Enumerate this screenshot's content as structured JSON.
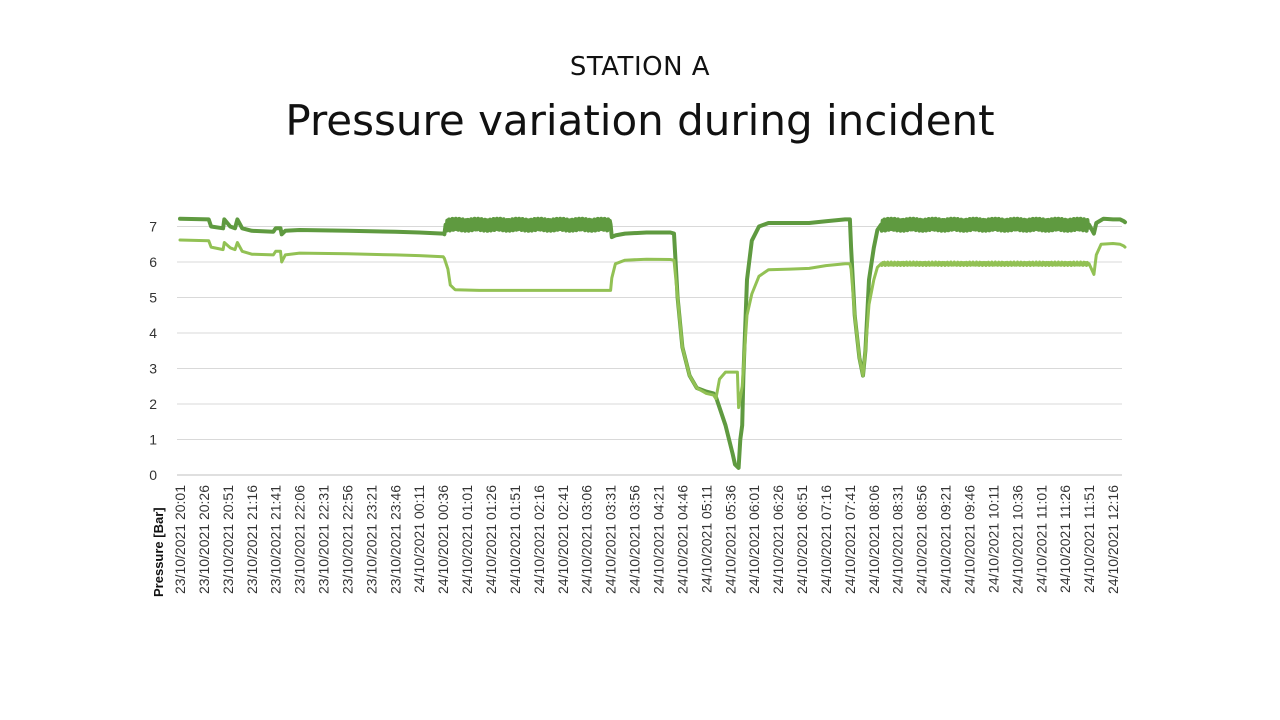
{
  "subtitle": "STATION A",
  "title": "Pressure variation during incident",
  "chart_data": {
    "type": "line",
    "ylabel": "Pressure [Bar]",
    "xlabel": "",
    "ylim": [
      0,
      7
    ],
    "yticks": [
      0,
      1,
      2,
      3,
      4,
      5,
      6,
      7
    ],
    "grid": true,
    "x_ticks": [
      "23/10/2021 20:01",
      "23/10/2021 20:26",
      "23/10/2021 20:51",
      "23/10/2021 21:16",
      "23/10/2021 21:41",
      "23/10/2021 22:06",
      "23/10/2021 22:31",
      "23/10/2021 22:56",
      "23/10/2021 23:21",
      "23/10/2021 23:46",
      "24/10/2021 00:11",
      "24/10/2021 00:36",
      "24/10/2021 01:01",
      "24/10/2021 01:26",
      "24/10/2021 01:51",
      "24/10/2021 02:16",
      "24/10/2021 02:41",
      "24/10/2021 03:06",
      "24/10/2021 03:31",
      "24/10/2021 03:56",
      "24/10/2021 04:21",
      "24/10/2021 04:46",
      "24/10/2021 05:11",
      "24/10/2021 05:36",
      "24/10/2021 06:01",
      "24/10/2021 06:26",
      "24/10/2021 06:51",
      "24/10/2021 07:16",
      "24/10/2021 07:41",
      "24/10/2021 08:06",
      "24/10/2021 08:31",
      "24/10/2021 08:56",
      "24/10/2021 09:21",
      "24/10/2021 09:46",
      "24/10/2021 10:11",
      "24/10/2021 10:36",
      "24/10/2021 11:01",
      "24/10/2021 11:26",
      "24/10/2021 11:51",
      "24/10/2021 12:16"
    ],
    "series": [
      {
        "color": "#5f9a40",
        "points": [
          [
            0,
            7.22
          ],
          [
            1.2,
            7.2
          ],
          [
            1.3,
            7.0
          ],
          [
            1.8,
            6.95
          ],
          [
            1.85,
            7.2
          ],
          [
            2.1,
            7.0
          ],
          [
            2.3,
            6.95
          ],
          [
            2.4,
            7.2
          ],
          [
            2.6,
            6.95
          ],
          [
            3.0,
            6.88
          ],
          [
            3.9,
            6.85
          ],
          [
            4.0,
            6.95
          ],
          [
            4.2,
            6.95
          ],
          [
            4.25,
            6.78
          ],
          [
            4.4,
            6.88
          ],
          [
            5.0,
            6.9
          ],
          [
            7.0,
            6.88
          ],
          [
            9.0,
            6.85
          ],
          [
            10.0,
            6.83
          ],
          [
            11.0,
            6.8
          ],
          [
            11.05,
            6.78
          ],
          [
            11.1,
            7.05
          ],
          [
            18.0,
            7.05
          ],
          [
            18.05,
            6.7
          ],
          [
            18.2,
            6.75
          ],
          [
            18.6,
            6.8
          ],
          [
            19.5,
            6.83
          ],
          [
            20.5,
            6.83
          ],
          [
            20.65,
            6.8
          ],
          [
            20.8,
            5.0
          ],
          [
            21.0,
            3.6
          ],
          [
            21.3,
            2.8
          ],
          [
            21.6,
            2.45
          ],
          [
            22.0,
            2.35
          ],
          [
            22.3,
            2.3
          ],
          [
            22.4,
            2.2
          ],
          [
            22.8,
            1.4
          ],
          [
            23.1,
            0.6
          ],
          [
            23.2,
            0.3
          ],
          [
            23.35,
            0.2
          ],
          [
            23.42,
            1.0
          ],
          [
            23.5,
            1.4
          ],
          [
            23.55,
            2.8
          ],
          [
            23.7,
            5.5
          ],
          [
            23.9,
            6.6
          ],
          [
            24.2,
            7.0
          ],
          [
            24.6,
            7.1
          ],
          [
            25.5,
            7.1
          ],
          [
            26.3,
            7.1
          ],
          [
            27.0,
            7.15
          ],
          [
            27.8,
            7.2
          ],
          [
            28.0,
            7.2
          ],
          [
            28.05,
            6.4
          ],
          [
            28.2,
            4.5
          ],
          [
            28.4,
            3.3
          ],
          [
            28.55,
            2.8
          ],
          [
            28.65,
            3.5
          ],
          [
            28.8,
            5.5
          ],
          [
            29.0,
            6.4
          ],
          [
            29.15,
            6.9
          ],
          [
            29.3,
            7.05
          ],
          [
            38.0,
            7.05
          ],
          [
            38.2,
            6.8
          ],
          [
            38.3,
            7.1
          ],
          [
            38.6,
            7.22
          ],
          [
            39.0,
            7.2
          ],
          [
            39.3,
            7.2
          ],
          [
            39.45,
            7.15
          ],
          [
            39.5,
            7.12
          ]
        ],
        "noise_bands": [
          [
            11.1,
            18.0,
            0.17
          ],
          [
            29.3,
            38.0,
            0.17
          ]
        ]
      },
      {
        "color": "#92c154",
        "points": [
          [
            0,
            6.62
          ],
          [
            1.2,
            6.6
          ],
          [
            1.3,
            6.42
          ],
          [
            1.8,
            6.35
          ],
          [
            1.85,
            6.55
          ],
          [
            2.1,
            6.4
          ],
          [
            2.3,
            6.35
          ],
          [
            2.4,
            6.55
          ],
          [
            2.6,
            6.3
          ],
          [
            3.0,
            6.22
          ],
          [
            3.9,
            6.2
          ],
          [
            4.0,
            6.3
          ],
          [
            4.2,
            6.3
          ],
          [
            4.25,
            6.0
          ],
          [
            4.4,
            6.2
          ],
          [
            5.0,
            6.25
          ],
          [
            7.0,
            6.23
          ],
          [
            9.0,
            6.2
          ],
          [
            10.0,
            6.18
          ],
          [
            11.0,
            6.15
          ],
          [
            11.05,
            6.1
          ],
          [
            11.2,
            5.8
          ],
          [
            11.3,
            5.35
          ],
          [
            11.5,
            5.22
          ],
          [
            12.5,
            5.2
          ],
          [
            17.9,
            5.2
          ],
          [
            18.0,
            5.2
          ],
          [
            18.05,
            5.55
          ],
          [
            18.2,
            5.95
          ],
          [
            18.6,
            6.05
          ],
          [
            19.5,
            6.08
          ],
          [
            20.5,
            6.07
          ],
          [
            20.65,
            6.05
          ],
          [
            20.8,
            5.0
          ],
          [
            21.0,
            3.6
          ],
          [
            21.3,
            2.8
          ],
          [
            21.6,
            2.45
          ],
          [
            22.0,
            2.3
          ],
          [
            22.3,
            2.25
          ],
          [
            22.4,
            2.15
          ],
          [
            22.55,
            2.7
          ],
          [
            22.8,
            2.9
          ],
          [
            23.3,
            2.9
          ],
          [
            23.35,
            1.9
          ],
          [
            23.5,
            2.5
          ],
          [
            23.7,
            4.5
          ],
          [
            23.9,
            5.1
          ],
          [
            24.2,
            5.6
          ],
          [
            24.6,
            5.78
          ],
          [
            25.5,
            5.8
          ],
          [
            26.3,
            5.82
          ],
          [
            27.0,
            5.9
          ],
          [
            27.8,
            5.95
          ],
          [
            28.0,
            5.95
          ],
          [
            28.05,
            5.8
          ],
          [
            28.2,
            4.5
          ],
          [
            28.4,
            3.3
          ],
          [
            28.55,
            2.8
          ],
          [
            28.65,
            3.5
          ],
          [
            28.8,
            4.8
          ],
          [
            29.0,
            5.5
          ],
          [
            29.15,
            5.85
          ],
          [
            29.3,
            5.95
          ],
          [
            38.0,
            5.95
          ],
          [
            38.2,
            5.65
          ],
          [
            38.3,
            6.2
          ],
          [
            38.5,
            6.5
          ],
          [
            39.0,
            6.52
          ],
          [
            39.3,
            6.5
          ],
          [
            39.45,
            6.45
          ],
          [
            39.5,
            6.42
          ]
        ],
        "noise_bands": [
          [
            29.3,
            38.0,
            0.05
          ]
        ]
      }
    ]
  }
}
